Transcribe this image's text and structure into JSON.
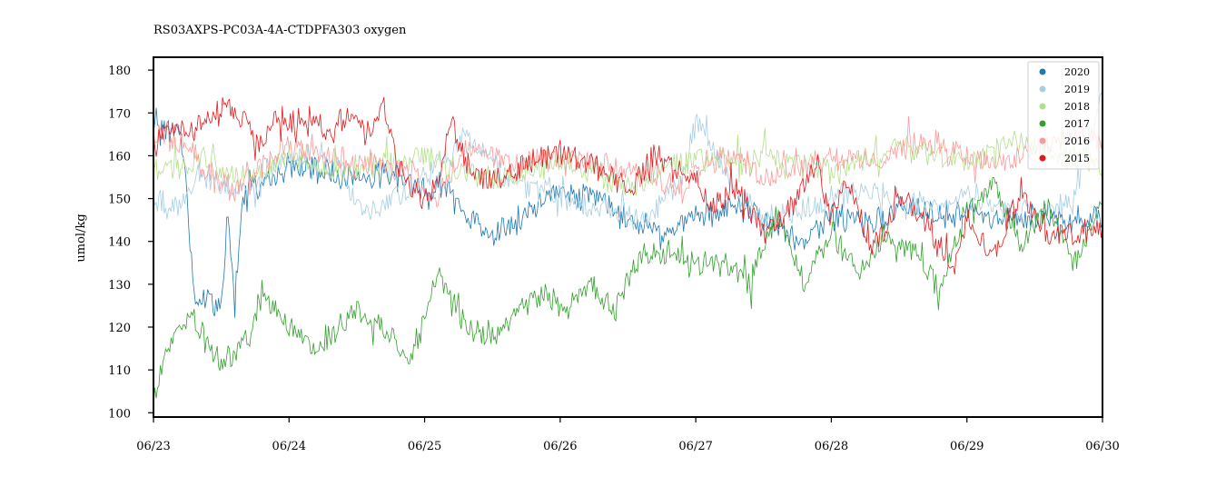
{
  "chart_data": {
    "type": "line",
    "title": "RS03AXPS-PC03A-4A-CTDPFA303 oxygen",
    "xlabel": "",
    "ylabel": "umol/kg",
    "x_ticks": [
      "06/23",
      "06/24",
      "06/25",
      "06/26",
      "06/27",
      "06/28",
      "06/29",
      "06/30"
    ],
    "xlim": [
      0,
      7
    ],
    "y_ticks": [
      100,
      110,
      120,
      130,
      140,
      150,
      160,
      170,
      180
    ],
    "ylim": [
      99,
      183
    ],
    "grid": false,
    "legend_position": "top-right",
    "x_units": "days since 06/23",
    "series": [
      {
        "name": "2020",
        "color": "#1f78b4",
        "x": [
          0,
          0.1,
          0.2,
          0.25,
          0.3,
          0.5,
          0.55,
          0.6,
          0.65,
          0.7,
          0.8,
          1.0,
          1.5,
          1.8,
          2.0,
          2.2,
          2.3,
          2.5,
          2.6,
          3.0,
          3.3,
          3.5,
          3.8,
          4.0,
          4.3,
          4.5,
          4.8,
          5.0,
          5.3,
          5.5,
          5.8,
          6.0,
          6.3,
          6.5,
          6.8,
          7.0
        ],
        "values": [
          165,
          166,
          165,
          150,
          127,
          125,
          145,
          127,
          148,
          155,
          152,
          158,
          155,
          156,
          152,
          153,
          146,
          142,
          143,
          152,
          150,
          145,
          143,
          145,
          148,
          145,
          140,
          146,
          144,
          148,
          146,
          147,
          145,
          146,
          145,
          146
        ]
      },
      {
        "name": "2019",
        "color": "#a6cee3",
        "x": [
          0,
          0.1,
          0.2,
          0.3,
          0.5,
          0.7,
          1.0,
          1.2,
          1.4,
          1.5,
          1.8,
          2.0,
          2.2,
          2.3,
          2.6,
          3.0,
          3.3,
          3.6,
          3.9,
          4.0,
          4.3,
          4.5,
          4.8,
          5.0,
          5.3,
          5.5,
          5.8,
          6.0,
          6.3,
          6.5,
          6.8,
          7.0
        ],
        "values": [
          150,
          148,
          147,
          155,
          153,
          152,
          160,
          158,
          157,
          147,
          150,
          155,
          160,
          165,
          155,
          150,
          148,
          145,
          155,
          168,
          152,
          145,
          148,
          150,
          152,
          150,
          148,
          150,
          148,
          147,
          150,
          175
        ]
      },
      {
        "name": "2018",
        "color": "#b2df8a",
        "x": [
          0,
          0.2,
          0.4,
          0.6,
          0.8,
          1.0,
          1.3,
          1.6,
          2.0,
          2.3,
          2.6,
          3.0,
          3.3,
          3.5,
          3.8,
          4.0,
          4.3,
          4.5,
          4.8,
          5.0,
          5.3,
          5.5,
          5.8,
          6.0,
          6.3,
          6.5,
          6.8,
          7.0
        ],
        "values": [
          157,
          158,
          159,
          155,
          157,
          160,
          156,
          158,
          160,
          156,
          155,
          158,
          156,
          152,
          157,
          160,
          158,
          160,
          158,
          156,
          160,
          162,
          160,
          158,
          163,
          162,
          160,
          158
        ]
      },
      {
        "name": "2017",
        "color": "#33a02c",
        "x": [
          0,
          0.05,
          0.15,
          0.3,
          0.5,
          0.7,
          0.8,
          1.0,
          1.2,
          1.5,
          1.7,
          1.9,
          2.0,
          2.1,
          2.3,
          2.5,
          2.7,
          2.9,
          3.0,
          3.2,
          3.4,
          3.6,
          3.8,
          4.0,
          4.2,
          4.4,
          4.6,
          4.8,
          5.0,
          5.2,
          5.4,
          5.6,
          5.8,
          6.0,
          6.2,
          6.4,
          6.6,
          6.8,
          7.0
        ],
        "values": [
          103,
          108,
          120,
          122,
          111,
          117,
          128,
          120,
          115,
          124,
          120,
          113,
          122,
          132,
          120,
          117,
          125,
          128,
          124,
          130,
          124,
          137,
          138,
          134,
          136,
          130,
          148,
          130,
          142,
          132,
          142,
          138,
          128,
          148,
          152,
          140,
          148,
          135,
          150
        ]
      },
      {
        "name": "2016",
        "color": "#fb9a99",
        "x": [
          0,
          0.2,
          0.4,
          0.6,
          0.8,
          1.0,
          1.3,
          1.6,
          1.9,
          2.1,
          2.3,
          2.6,
          3.0,
          3.3,
          3.6,
          3.9,
          4.0,
          4.3,
          4.5,
          4.8,
          5.0,
          5.3,
          5.5,
          5.8,
          6.0,
          6.3,
          6.5,
          6.8,
          7.0
        ],
        "values": [
          166,
          163,
          155,
          152,
          158,
          162,
          160,
          158,
          156,
          150,
          162,
          158,
          160,
          158,
          155,
          153,
          158,
          160,
          155,
          158,
          160,
          158,
          162,
          163,
          160,
          158,
          162,
          165,
          163
        ]
      },
      {
        "name": "2015",
        "color": "#e31a1c",
        "x": [
          0,
          0.1,
          0.3,
          0.5,
          0.7,
          0.75,
          0.9,
          1.0,
          1.2,
          1.3,
          1.4,
          1.6,
          1.7,
          1.8,
          1.9,
          2.0,
          2.1,
          2.2,
          2.3,
          2.5,
          2.7,
          3.0,
          3.2,
          3.5,
          3.7,
          3.8,
          4.0,
          4.1,
          4.3,
          4.5,
          4.7,
          4.9,
          5.0,
          5.1,
          5.3,
          5.5,
          5.7,
          5.9,
          6.0,
          6.2,
          6.4,
          6.6,
          6.8,
          7.0
        ],
        "values": [
          162,
          167,
          166,
          171,
          168,
          160,
          169,
          168,
          169,
          164,
          169,
          166,
          171,
          158,
          152,
          150,
          154,
          168,
          159,
          153,
          158,
          161,
          159,
          152,
          160,
          158,
          155,
          148,
          153,
          142,
          148,
          158,
          145,
          155,
          138,
          150,
          145,
          133,
          145,
          136,
          152,
          142,
          141,
          144
        ]
      }
    ]
  }
}
